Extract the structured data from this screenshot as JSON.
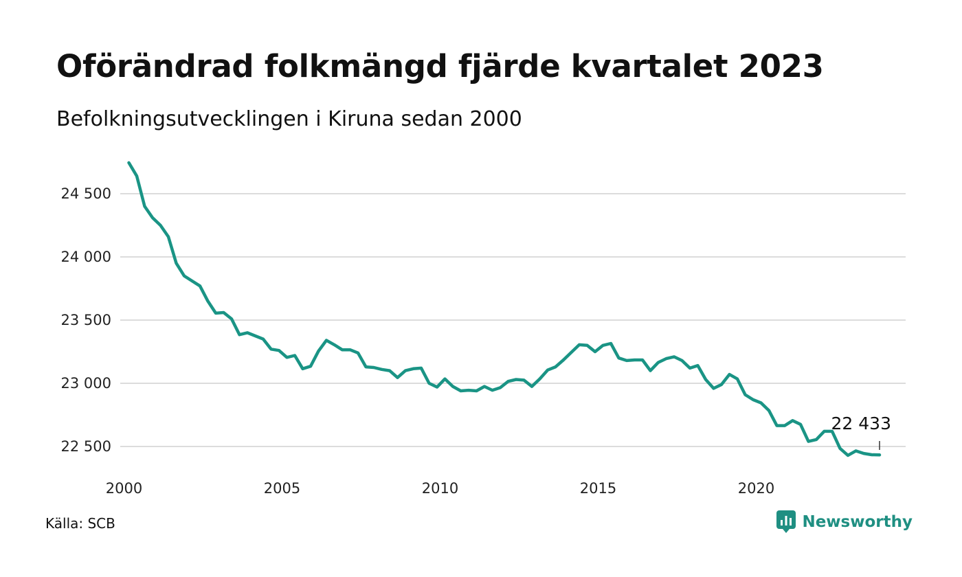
{
  "title": "Oförändrad folkmängd fjärde kvartalet 2023",
  "subtitle": "Befolkningsutvecklingen i Kiruna sedan 2000",
  "source": "Källa: SCB",
  "brand": {
    "name": "Newsworthy",
    "icon": "newsworthy-logo-icon",
    "color": "#1f8f82"
  },
  "chart_data": {
    "type": "line",
    "title": "Oförändrad folkmängd fjärde kvartalet 2023",
    "subtitle": "Befolkningsutvecklingen i Kiruna sedan 2000",
    "xlabel": "",
    "ylabel": "",
    "x_tick_values": [
      2000,
      2005,
      2010,
      2015,
      2020
    ],
    "x_tick_labels": [
      "2000",
      "2005",
      "2010",
      "2015",
      "2020"
    ],
    "y_tick_values": [
      22500,
      23000,
      23500,
      24000,
      24500
    ],
    "y_tick_labels": [
      "22 500",
      "23 000",
      "23 500",
      "24 000",
      "24 500"
    ],
    "xlim": [
      2000,
      2025
    ],
    "ylim": [
      22300,
      24850
    ],
    "grid": "horizontal",
    "line_color": "#1a9485",
    "annotation": {
      "label": "22 433",
      "value": 22433,
      "period": "2023 Q4"
    },
    "x": [
      "2000 Q1",
      "2000 Q2",
      "2000 Q3",
      "2000 Q4",
      "2001 Q1",
      "2001 Q2",
      "2001 Q3",
      "2001 Q4",
      "2002 Q1",
      "2002 Q2",
      "2002 Q3",
      "2002 Q4",
      "2003 Q1",
      "2003 Q2",
      "2003 Q3",
      "2003 Q4",
      "2004 Q1",
      "2004 Q2",
      "2004 Q3",
      "2004 Q4",
      "2005 Q1",
      "2005 Q2",
      "2005 Q3",
      "2005 Q4",
      "2006 Q1",
      "2006 Q2",
      "2006 Q3",
      "2006 Q4",
      "2007 Q1",
      "2007 Q2",
      "2007 Q3",
      "2007 Q4",
      "2008 Q1",
      "2008 Q2",
      "2008 Q3",
      "2008 Q4",
      "2009 Q1",
      "2009 Q2",
      "2009 Q3",
      "2009 Q4",
      "2010 Q1",
      "2010 Q2",
      "2010 Q3",
      "2010 Q4",
      "2011 Q1",
      "2011 Q2",
      "2011 Q3",
      "2011 Q4",
      "2012 Q1",
      "2012 Q2",
      "2012 Q3",
      "2012 Q4",
      "2013 Q1",
      "2013 Q2",
      "2013 Q3",
      "2013 Q4",
      "2014 Q1",
      "2014 Q2",
      "2014 Q3",
      "2014 Q4",
      "2015 Q1",
      "2015 Q2",
      "2015 Q3",
      "2015 Q4",
      "2016 Q1",
      "2016 Q2",
      "2016 Q3",
      "2016 Q4",
      "2017 Q1",
      "2017 Q2",
      "2017 Q3",
      "2017 Q4",
      "2018 Q1",
      "2018 Q2",
      "2018 Q3",
      "2018 Q4",
      "2019 Q1",
      "2019 Q2",
      "2019 Q3",
      "2019 Q4",
      "2020 Q1",
      "2020 Q2",
      "2020 Q3",
      "2020 Q4",
      "2021 Q1",
      "2021 Q2",
      "2021 Q3",
      "2021 Q4",
      "2022 Q1",
      "2022 Q2",
      "2022 Q3",
      "2022 Q4",
      "2023 Q1",
      "2023 Q2",
      "2023 Q3",
      "2023 Q4"
    ],
    "series": [
      {
        "values": [
          24745,
          24640,
          24400,
          24310,
          24250,
          24160,
          23950,
          23850,
          23810,
          23770,
          23650,
          23555,
          23560,
          23510,
          23385,
          23400,
          23375,
          23350,
          23270,
          23260,
          23205,
          23220,
          23115,
          23135,
          23255,
          23340,
          23305,
          23265,
          23265,
          23240,
          23130,
          23125,
          23110,
          23100,
          23045,
          23100,
          23115,
          23120,
          23000,
          22970,
          23035,
          22975,
          22940,
          22945,
          22940,
          22975,
          22945,
          22965,
          23015,
          23030,
          23025,
          22975,
          23035,
          23105,
          23130,
          23185,
          23245,
          23305,
          23300,
          23250,
          23300,
          23315,
          23200,
          23180,
          23185,
          23185,
          23100,
          23165,
          23195,
          23210,
          23180,
          23120,
          23140,
          23030,
          22960,
          22990,
          23070,
          23035,
          22910,
          22870,
          22845,
          22785,
          22665,
          22665,
          22705,
          22675,
          22540,
          22555,
          22620,
          22620,
          22485,
          22430,
          22465,
          22445,
          22435,
          22433
        ]
      }
    ]
  }
}
